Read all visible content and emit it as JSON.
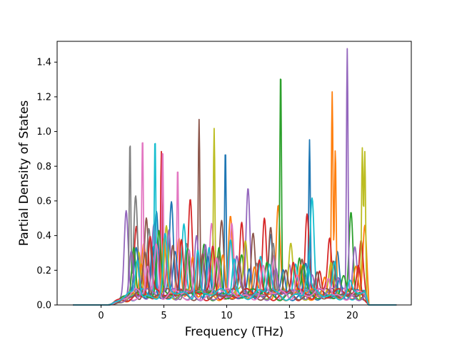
{
  "chart_data": {
    "type": "line",
    "title": "",
    "xlabel": "Frequency (THz)",
    "ylabel": "Partial Density of States",
    "xlim": [
      -3.5,
      24.7
    ],
    "ylim": [
      0.0,
      1.52
    ],
    "xticks": [
      0,
      5,
      10,
      15,
      20
    ],
    "yticks": [
      0.0,
      0.2,
      0.4,
      0.6,
      0.8,
      1.0,
      1.2,
      1.4
    ],
    "grid": false,
    "legend": "none",
    "band": {
      "x_start": 0.5,
      "x_end": 21.3
    },
    "series": [
      {
        "color": "#1f77b4",
        "peaks": [
          [
            4.4,
            0.46
          ],
          [
            5.6,
            0.55
          ],
          [
            9.9,
            0.88
          ],
          [
            16.6,
            0.88
          ],
          [
            13.5,
            0.35
          ],
          [
            18.8,
            0.25
          ]
        ]
      },
      {
        "color": "#ff7f0e",
        "peaks": [
          [
            3.4,
            0.3
          ],
          [
            6.2,
            0.35
          ],
          [
            10.3,
            0.45
          ],
          [
            14.1,
            0.52
          ],
          [
            18.4,
            1.16
          ],
          [
            18.65,
            0.81
          ],
          [
            21.0,
            0.43
          ]
        ]
      },
      {
        "color": "#2ca02c",
        "peaks": [
          [
            4.2,
            0.28
          ],
          [
            8.2,
            0.28
          ],
          [
            11.2,
            0.2
          ],
          [
            14.3,
            1.28
          ],
          [
            15.8,
            0.22
          ],
          [
            19.9,
            0.48
          ]
        ]
      },
      {
        "color": "#d62728",
        "peaks": [
          [
            2.8,
            0.38
          ],
          [
            4.8,
            0.83
          ],
          [
            7.1,
            0.55
          ],
          [
            11.2,
            0.43
          ],
          [
            13.0,
            0.45
          ],
          [
            16.4,
            0.46
          ],
          [
            18.2,
            0.31
          ],
          [
            20.7,
            0.29
          ]
        ]
      },
      {
        "color": "#9467bd",
        "peaks": [
          [
            2.0,
            0.5
          ],
          [
            4.2,
            0.41
          ],
          [
            8.3,
            0.3
          ],
          [
            11.7,
            0.62
          ],
          [
            15.0,
            0.2
          ],
          [
            19.6,
            1.44
          ],
          [
            20.2,
            0.25
          ]
        ]
      },
      {
        "color": "#8c564b",
        "peaks": [
          [
            3.6,
            0.45
          ],
          [
            7.8,
            1.02
          ],
          [
            9.6,
            0.4
          ],
          [
            12.1,
            0.35
          ],
          [
            13.5,
            0.39
          ],
          [
            16.0,
            0.2
          ],
          [
            18.5,
            0.2
          ]
        ]
      },
      {
        "color": "#e377c2",
        "peaks": [
          [
            3.3,
            0.92
          ],
          [
            4.9,
            0.82
          ],
          [
            6.1,
            0.74
          ],
          [
            8.8,
            0.39
          ],
          [
            10.4,
            0.42
          ],
          [
            13.8,
            0.24
          ],
          [
            17.1,
            0.12
          ]
        ]
      },
      {
        "color": "#7f7f7f",
        "peaks": [
          [
            2.3,
            0.92
          ],
          [
            2.75,
            0.57
          ],
          [
            3.8,
            0.37
          ],
          [
            6.8,
            0.3
          ],
          [
            9.3,
            0.25
          ],
          [
            12.4,
            0.19
          ],
          [
            13.7,
            0.33
          ],
          [
            17.0,
            0.1
          ]
        ]
      },
      {
        "color": "#bcbd22",
        "peaks": [
          [
            3.0,
            0.25
          ],
          [
            5.2,
            0.4
          ],
          [
            9.0,
            0.99
          ],
          [
            11.5,
            0.3
          ],
          [
            15.1,
            0.28
          ],
          [
            18.3,
            0.15
          ],
          [
            20.8,
            0.86
          ],
          [
            21.0,
            0.82
          ]
        ]
      },
      {
        "color": "#17becf",
        "peaks": [
          [
            4.3,
            0.93
          ],
          [
            6.6,
            0.39
          ],
          [
            8.6,
            0.3
          ],
          [
            10.3,
            0.29
          ],
          [
            12.7,
            0.25
          ],
          [
            15.5,
            0.2
          ],
          [
            16.8,
            0.56
          ],
          [
            18.6,
            0.2
          ]
        ]
      },
      {
        "color": "#1f77b4",
        "peaks": [
          [
            2.8,
            0.24
          ],
          [
            4.1,
            0.28
          ],
          [
            5.9,
            0.22
          ],
          [
            8.5,
            0.22
          ],
          [
            11.8,
            0.16
          ],
          [
            14.5,
            0.13
          ],
          [
            16.3,
            0.18
          ],
          [
            19.0,
            0.1
          ]
        ]
      },
      {
        "color": "#ff7f0e",
        "peaks": [
          [
            3.2,
            0.2
          ],
          [
            5.0,
            0.3
          ],
          [
            7.3,
            0.25
          ],
          [
            9.7,
            0.2
          ],
          [
            12.2,
            0.15
          ],
          [
            15.9,
            0.17
          ],
          [
            17.8,
            0.12
          ],
          [
            20.3,
            0.15
          ]
        ]
      },
      {
        "color": "#2ca02c",
        "peaks": [
          [
            2.6,
            0.3
          ],
          [
            4.6,
            0.34
          ],
          [
            6.9,
            0.3
          ],
          [
            9.4,
            0.26
          ],
          [
            13.2,
            0.18
          ],
          [
            16.1,
            0.15
          ],
          [
            19.3,
            0.08
          ]
        ]
      },
      {
        "color": "#d62728",
        "peaks": [
          [
            3.9,
            0.32
          ],
          [
            6.4,
            0.35
          ],
          [
            8.9,
            0.27
          ],
          [
            12.6,
            0.2
          ],
          [
            15.3,
            0.18
          ],
          [
            17.4,
            0.14
          ],
          [
            20.5,
            0.17
          ]
        ]
      },
      {
        "color": "#9467bd",
        "peaks": [
          [
            2.4,
            0.26
          ],
          [
            5.4,
            0.38
          ],
          [
            7.6,
            0.33
          ],
          [
            10.8,
            0.2
          ],
          [
            13.9,
            0.14
          ],
          [
            16.8,
            0.12
          ],
          [
            18.9,
            0.09
          ]
        ]
      },
      {
        "color": "#8c564b",
        "peaks": [
          [
            3.5,
            0.22
          ],
          [
            5.7,
            0.3
          ],
          [
            8.1,
            0.25
          ],
          [
            11.0,
            0.18
          ],
          [
            14.7,
            0.12
          ],
          [
            17.2,
            0.14
          ],
          [
            20.0,
            0.07
          ]
        ]
      },
      {
        "color": "#e377c2",
        "peaks": [
          [
            3.7,
            0.18
          ],
          [
            4.4,
            0.3
          ],
          [
            7.0,
            0.24
          ],
          [
            9.2,
            0.22
          ],
          [
            12.9,
            0.15
          ],
          [
            15.6,
            0.13
          ],
          [
            18.1,
            0.1
          ]
        ]
      },
      {
        "color": "#17becf",
        "peaks": [
          [
            2.9,
            0.21
          ],
          [
            5.1,
            0.33
          ],
          [
            7.7,
            0.28
          ],
          [
            10.6,
            0.22
          ],
          [
            13.4,
            0.17
          ],
          [
            16.5,
            0.14
          ],
          [
            19.8,
            0.06
          ]
        ]
      }
    ]
  }
}
